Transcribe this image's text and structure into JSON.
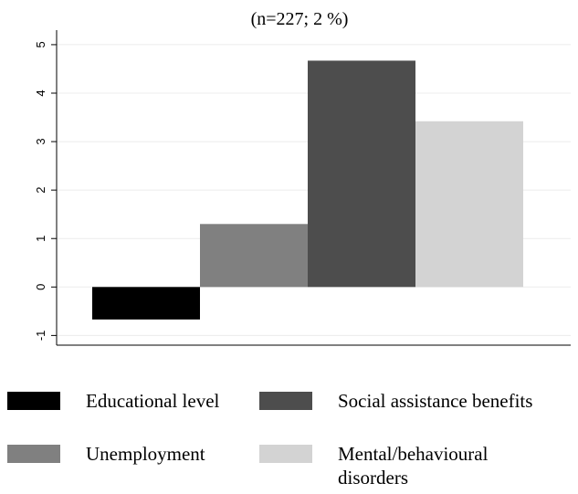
{
  "chart_data": {
    "type": "bar",
    "title": "",
    "subtitle": "(n=227; 2 %)",
    "xlabel": "",
    "ylabel": "",
    "ylim": [
      -1.2,
      5.3
    ],
    "yticks": [
      "-1",
      "0",
      "1",
      "2",
      "3",
      "4",
      "5"
    ],
    "grid": true,
    "legend_position": "bottom",
    "series": [
      {
        "name": "Educational level",
        "value": -0.67,
        "color": "#000000"
      },
      {
        "name": "Unemployment",
        "value": 1.3,
        "color": "#808080"
      },
      {
        "name": "Social assistance benefits",
        "value": 4.67,
        "color": "#4d4d4d"
      },
      {
        "name": "Mental/behavioural disorders",
        "value": 3.42,
        "color": "#d3d3d3"
      }
    ]
  }
}
